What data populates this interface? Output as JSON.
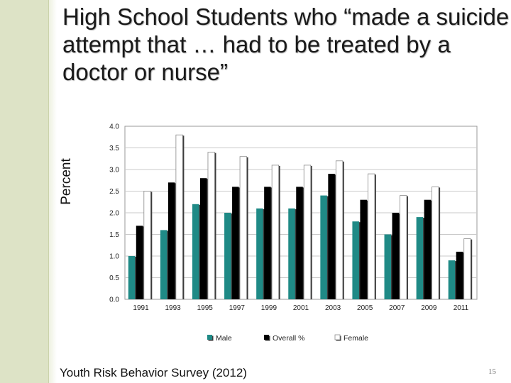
{
  "slide": {
    "title": "High School Students who “made a suicide attempt that … had to be treated by a doctor or nurse”",
    "source": "Youth Risk Behavior Survey (2012)",
    "page_number": "15"
  },
  "colors": {
    "side_band": "#dde3c6",
    "male": "#1f8a86",
    "overall": "#000000",
    "female": "#ffffff",
    "grid": "#c9c9c9"
  },
  "chart_data": {
    "type": "bar",
    "ylabel": "Percent",
    "xlabel": "",
    "ylim": [
      0,
      4.0
    ],
    "y_ticks": [
      "0.0",
      "0.5",
      "1.0",
      "1.5",
      "2.0",
      "2.5",
      "3.0",
      "3.5",
      "4.0"
    ],
    "grid": true,
    "legend_position": "bottom",
    "categories": [
      "1991",
      "1993",
      "1995",
      "1997",
      "1999",
      "2001",
      "2003",
      "2005",
      "2007",
      "2009",
      "2011"
    ],
    "series": [
      {
        "name": "Male",
        "color": "#1f8a86",
        "values": [
          1.0,
          1.6,
          2.2,
          2.0,
          2.1,
          2.1,
          2.4,
          1.8,
          1.5,
          1.9,
          0.9
        ]
      },
      {
        "name": "Overall %",
        "color": "#000000",
        "values": [
          1.7,
          2.7,
          2.8,
          2.6,
          2.6,
          2.6,
          2.9,
          2.3,
          2.0,
          2.3,
          1.1
        ]
      },
      {
        "name": "Female",
        "color": "#ffffff",
        "values": [
          2.5,
          3.8,
          3.4,
          3.3,
          3.1,
          3.1,
          3.2,
          2.9,
          2.4,
          2.6,
          1.4
        ]
      }
    ]
  }
}
